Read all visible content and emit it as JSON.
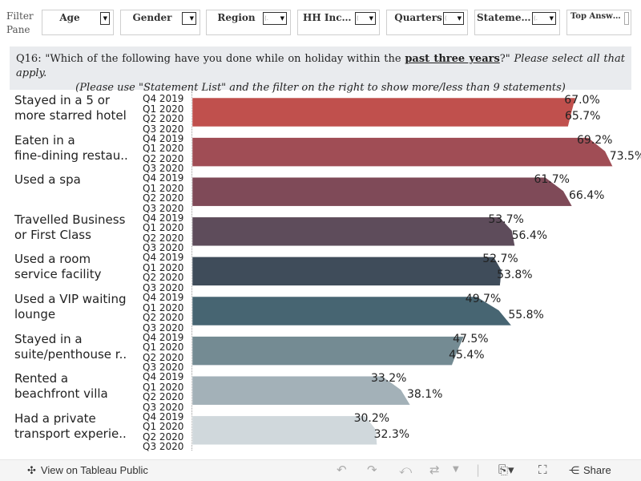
{
  "filter_pane": {
    "line1": "Filter",
    "line2": "Pane"
  },
  "filters": [
    {
      "id": "age",
      "label": "Age",
      "value": ""
    },
    {
      "id": "gender",
      "label": "Gender",
      "value": ""
    },
    {
      "id": "region",
      "label": "Region",
      "value": "(."
    },
    {
      "id": "income",
      "label": "HH Income",
      "value": "("
    },
    {
      "id": "quarters",
      "label": "Quarters",
      "value": "("
    },
    {
      "id": "statement",
      "label": "Statement…",
      "value": "(."
    },
    {
      "id": "top",
      "label": "Top Answers",
      "value": ""
    }
  ],
  "question": {
    "prefix": "Q16: \"Which of the following have you done while on holiday within the ",
    "emphasis": "past three years",
    "suffix": "?\" ",
    "instruction": "Please select all that apply.",
    "line2": "(Please use \"Statement List\" and the filter on the right to show more/less than 9 statements)"
  },
  "quarter_labels": [
    "Q4 2019",
    "Q1 2020",
    "Q2 2020",
    "Q3 2020"
  ],
  "chart_data": {
    "type": "bar",
    "orientation": "horizontal",
    "xlim": [
      0,
      80
    ],
    "unit": "%",
    "categories": [
      {
        "line1": "Stayed in a 5 or",
        "line2": "more starred hotel",
        "values": [
          67.0,
          65.7
        ],
        "color": "#c0504d"
      },
      {
        "line1": "Eaten in a",
        "line2": "fine-dining restau..",
        "values": [
          69.2,
          73.5
        ],
        "color": "#a04d55"
      },
      {
        "line1": "Used a spa",
        "line2": "",
        "values": [
          61.7,
          66.4
        ],
        "color": "#7f4a58"
      },
      {
        "line1": "Travelled Business",
        "line2": "or First Class",
        "values": [
          53.7,
          56.4
        ],
        "color": "#5e4c5b"
      },
      {
        "line1": "Used a room",
        "line2": "service facility",
        "values": [
          52.7,
          53.8
        ],
        "color": "#3f4c5a"
      },
      {
        "line1": "Used a VIP waiting",
        "line2": "lounge",
        "values": [
          49.7,
          55.8
        ],
        "color": "#476572"
      },
      {
        "line1": "Stayed in a",
        "line2": "suite/penthouse r..",
        "values": [
          47.5,
          45.4
        ],
        "color": "#748b93"
      },
      {
        "line1": "Rented a",
        "line2": "beachfront villa",
        "values": [
          33.2,
          38.1
        ],
        "color": "#a3b1b8"
      },
      {
        "line1": "Had a private",
        "line2": "transport experie..",
        "values": [
          30.2,
          32.3
        ],
        "color": "#d0d8dc"
      }
    ],
    "value_labels": [
      [
        "67.0%",
        "65.7%"
      ],
      [
        "69.2%",
        "73.5%"
      ],
      [
        "61.7%",
        "66.4%"
      ],
      [
        "53.7%",
        "56.4%"
      ],
      [
        "52.7%",
        "53.8%"
      ],
      [
        "49.7%",
        "55.8%"
      ],
      [
        "47.5%",
        "45.4%"
      ],
      [
        "33.2%",
        "38.1%"
      ],
      [
        "30.2%",
        "32.3%"
      ]
    ]
  },
  "footer": {
    "view_label": "View on Tableau Public",
    "share_label": "Share",
    "icons": [
      "tableau-logo-icon",
      "undo-icon",
      "redo-icon",
      "revert-icon",
      "refresh-icon",
      "download-icon",
      "fullscreen-icon",
      "share-icon"
    ]
  }
}
